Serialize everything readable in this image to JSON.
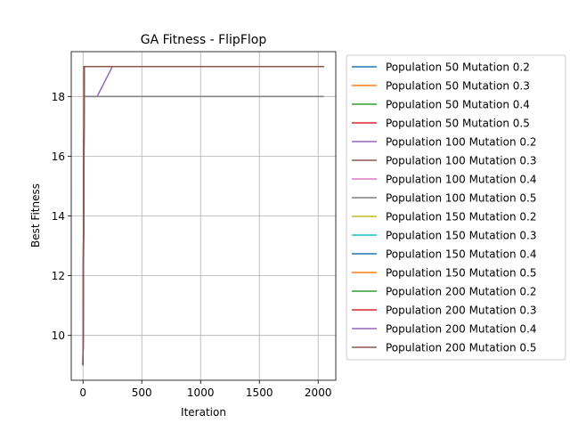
{
  "chart_data": {
    "type": "line",
    "title": "GA Fitness - FlipFlop",
    "xlabel": "Iteration",
    "ylabel": "Best Fitness",
    "xlim": [
      -100,
      2150
    ],
    "ylim": [
      8.5,
      19.5
    ],
    "xticks": [
      0,
      500,
      1000,
      1500,
      2000
    ],
    "yticks": [
      10,
      12,
      14,
      16,
      18
    ],
    "grid": true,
    "legend_position": "outside-right",
    "series": [
      {
        "name": "Population 50 Mutation 0.2",
        "color": "#1f77b4",
        "points": [
          [
            0,
            9
          ],
          [
            10,
            19
          ],
          [
            2050,
            19
          ]
        ]
      },
      {
        "name": "Population 50 Mutation 0.3",
        "color": "#ff7f0e",
        "points": [
          [
            0,
            9
          ],
          [
            12,
            19
          ],
          [
            2050,
            19
          ]
        ]
      },
      {
        "name": "Population 50 Mutation 0.4",
        "color": "#2ca02c",
        "points": [
          [
            0,
            9
          ],
          [
            10,
            19
          ],
          [
            2050,
            19
          ]
        ]
      },
      {
        "name": "Population 50 Mutation 0.5",
        "color": "#d62728",
        "points": [
          [
            0,
            9
          ],
          [
            12,
            19
          ],
          [
            2050,
            19
          ]
        ]
      },
      {
        "name": "Population 100 Mutation 0.2",
        "color": "#9467bd",
        "points": [
          [
            0,
            9
          ],
          [
            10,
            18
          ],
          [
            120,
            18
          ],
          [
            250,
            19
          ],
          [
            2050,
            19
          ]
        ]
      },
      {
        "name": "Population 100 Mutation 0.3",
        "color": "#8c564b",
        "points": [
          [
            0,
            9
          ],
          [
            10,
            19
          ],
          [
            2050,
            19
          ]
        ]
      },
      {
        "name": "Population 100 Mutation 0.4",
        "color": "#e377c2",
        "points": [
          [
            0,
            9
          ],
          [
            10,
            19
          ],
          [
            2050,
            19
          ]
        ]
      },
      {
        "name": "Population 100 Mutation 0.5",
        "color": "#7f7f7f",
        "points": [
          [
            0,
            9
          ],
          [
            10,
            18
          ],
          [
            2050,
            18
          ]
        ]
      },
      {
        "name": "Population 150 Mutation 0.2",
        "color": "#bcbd22",
        "points": [
          [
            0,
            9
          ],
          [
            10,
            19
          ],
          [
            2050,
            19
          ]
        ]
      },
      {
        "name": "Population 150 Mutation 0.3",
        "color": "#17becf",
        "points": [
          [
            0,
            9
          ],
          [
            10,
            19
          ],
          [
            2050,
            19
          ]
        ]
      },
      {
        "name": "Population 150 Mutation 0.4",
        "color": "#1f77b4",
        "points": [
          [
            0,
            9
          ],
          [
            10,
            19
          ],
          [
            2050,
            19
          ]
        ]
      },
      {
        "name": "Population 150 Mutation 0.5",
        "color": "#ff7f0e",
        "points": [
          [
            0,
            9
          ],
          [
            10,
            19
          ],
          [
            2050,
            19
          ]
        ]
      },
      {
        "name": "Population 200 Mutation 0.2",
        "color": "#2ca02c",
        "points": [
          [
            0,
            9
          ],
          [
            10,
            19
          ],
          [
            2050,
            19
          ]
        ]
      },
      {
        "name": "Population 200 Mutation 0.3",
        "color": "#d62728",
        "points": [
          [
            0,
            9
          ],
          [
            10,
            19
          ],
          [
            2050,
            19
          ]
        ]
      },
      {
        "name": "Population 200 Mutation 0.4",
        "color": "#9467bd",
        "points": [
          [
            0,
            9
          ],
          [
            10,
            19
          ],
          [
            2050,
            19
          ]
        ]
      },
      {
        "name": "Population 200 Mutation 0.5",
        "color": "#8c564b",
        "points": [
          [
            0,
            9
          ],
          [
            10,
            19
          ],
          [
            2050,
            19
          ]
        ]
      }
    ]
  }
}
